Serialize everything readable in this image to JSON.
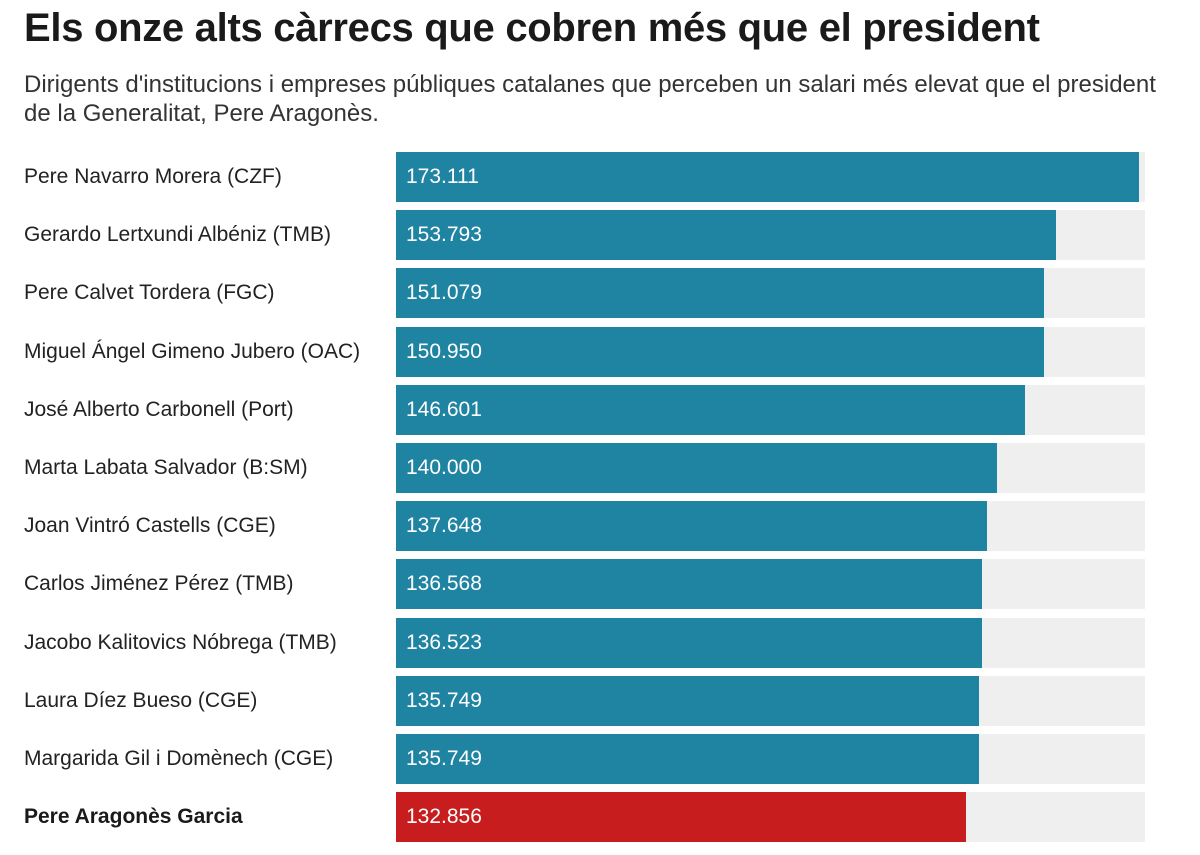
{
  "title": "Els onze alts càrrecs que cobren més que el president",
  "subtitle": "Dirigents d'institucions i empreses públiques catalanes que perceben un salari més elevat que el president de la Generalitat, Pere Aragonès.",
  "colors": {
    "bar": "#1f83a2",
    "highlight": "#c81d1f",
    "track": "#efefef"
  },
  "chart_data": {
    "type": "bar",
    "orientation": "horizontal",
    "title": "Els onze alts càrrecs que cobren més que el president",
    "subtitle": "Dirigents d'institucions i empreses públiques catalanes que perceben un salari més elevat que el president de la Generalitat, Pere Aragonès.",
    "xlim": [
      0,
      173111
    ],
    "grid": false,
    "legend": "none",
    "categories": [
      "Pere Navarro Morera (CZF)",
      "Gerardo Lertxundi Albéniz (TMB)",
      "Pere Calvet Tordera (FGC)",
      "Miguel Ángel Gimeno Jubero (OAC)",
      "José Alberto Carbonell (Port)",
      "Marta Labata Salvador (B:SM)",
      "Joan Vintró Castells (CGE)",
      "Carlos Jiménez Pérez (TMB)",
      "Jacobo Kalitovics Nóbrega (TMB)",
      "Laura Díez Bueso (CGE)",
      "Margarida Gil i Domènech (CGE)",
      "Pere Aragonès Garcia"
    ],
    "values": [
      173111,
      153793,
      151079,
      150950,
      146601,
      140000,
      137648,
      136568,
      136523,
      135749,
      135749,
      132856
    ],
    "value_labels": [
      "173.111",
      "153.793",
      "151.079",
      "150.950",
      "146.601",
      "140.000",
      "137.648",
      "136.568",
      "136.523",
      "135.749",
      "135.749",
      "132.856"
    ],
    "highlight_index": 11
  }
}
